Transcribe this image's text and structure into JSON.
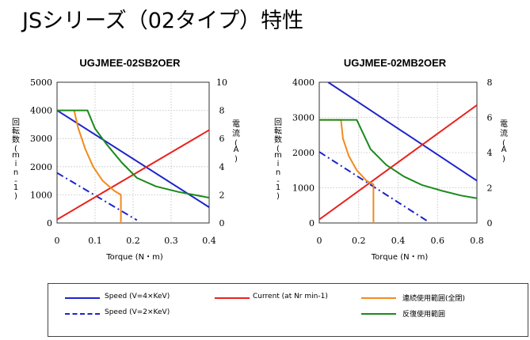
{
  "page": {
    "title": "JSシリーズ（02タイプ）特性"
  },
  "chart_data": [
    {
      "type": "line",
      "title": "UGJMEE-02SB2OER",
      "xlabel": "Torque (N・m)",
      "ylabel_left": "回転数 (min-1)",
      "ylabel_right": "電流 (A)",
      "xlim": [
        0,
        0.4
      ],
      "ylim_left": [
        0,
        5000
      ],
      "ylim_right": [
        0,
        10
      ],
      "x_ticks": [
        0,
        0.1,
        0.2,
        0.3,
        0.4
      ],
      "x_tick_labels": [
        "0",
        "0.1",
        "0.2",
        "0.3",
        "0.4"
      ],
      "y_left_ticks": [
        0,
        1000,
        2000,
        3000,
        4000,
        5000
      ],
      "y_left_tick_labels": [
        "0",
        "1000",
        "2000",
        "3000",
        "4000",
        "5000"
      ],
      "y_right_ticks": [
        0,
        2,
        4,
        6,
        8,
        10
      ],
      "y_right_tick_labels": [
        "0",
        "2",
        "4",
        "6",
        "8",
        "10"
      ],
      "grid": true,
      "series": [
        {
          "name": "Speed (V=4×KeV)",
          "axis": "left",
          "color": "#1f24c8",
          "style": "solid",
          "x": [
            0,
            0.4
          ],
          "y": [
            4000,
            560
          ]
        },
        {
          "name": "Speed (V=2×KeV)",
          "axis": "left",
          "color": "#1f24c8",
          "style": "dashdot",
          "x": [
            0,
            0.21
          ],
          "y": [
            1780,
            100
          ]
        },
        {
          "name": "Current (at Nr min-1)",
          "axis": "right",
          "color": "#e8231e",
          "style": "solid",
          "x": [
            0,
            0.4
          ],
          "y": [
            0.25,
            6.6
          ]
        },
        {
          "name": "連続使用範囲(全閉)",
          "axis": "left",
          "color": "#f28a1e",
          "style": "solid",
          "x": [
            0.045,
            0.055,
            0.075,
            0.095,
            0.12,
            0.15,
            0.168,
            0.168
          ],
          "y": [
            4000,
            3400,
            2600,
            2000,
            1500,
            1150,
            1000,
            0
          ]
        },
        {
          "name": "反復使用範囲",
          "axis": "left",
          "color": "#1a8a1a",
          "style": "solid",
          "x": [
            0,
            0.08,
            0.1,
            0.13,
            0.17,
            0.21,
            0.26,
            0.32,
            0.4
          ],
          "y": [
            4000,
            4000,
            3350,
            2800,
            2150,
            1600,
            1300,
            1100,
            900
          ]
        }
      ]
    },
    {
      "type": "line",
      "title": "UGJMEE-02MB2OER",
      "xlabel": "Torque (N・m)",
      "ylabel_left": "回転数 (min-1)",
      "ylabel_right": "電流 (A)",
      "xlim": [
        0,
        0.8
      ],
      "ylim_left": [
        0,
        4000
      ],
      "ylim_right": [
        0,
        8
      ],
      "x_ticks": [
        0,
        0.2,
        0.4,
        0.6,
        0.8
      ],
      "x_tick_labels": [
        "0",
        "0.2",
        "0.4",
        "0.6",
        "0.8"
      ],
      "y_left_ticks": [
        0,
        1000,
        2000,
        3000,
        4000
      ],
      "y_left_tick_labels": [
        "0",
        "1000",
        "2000",
        "3000",
        "4000"
      ],
      "y_right_ticks": [
        0,
        2,
        4,
        6,
        8
      ],
      "y_right_tick_labels": [
        "0",
        "2",
        "4",
        "6",
        "8"
      ],
      "grid": true,
      "series": [
        {
          "name": "Speed (V=4×KeV)",
          "axis": "left",
          "color": "#1f24c8",
          "style": "solid",
          "x": [
            0.045,
            0.8
          ],
          "y": [
            4000,
            1200
          ]
        },
        {
          "name": "Speed (V=2×KeV)",
          "axis": "left",
          "color": "#1f24c8",
          "style": "dashdot",
          "x": [
            0,
            0.55
          ],
          "y": [
            2020,
            50
          ]
        },
        {
          "name": "Current (at Nr min-1)",
          "axis": "right",
          "color": "#e8231e",
          "style": "solid",
          "x": [
            0,
            0.8
          ],
          "y": [
            0.2,
            6.7
          ]
        },
        {
          "name": "連続使用範囲(全閉)",
          "axis": "left",
          "color": "#f28a1e",
          "style": "solid",
          "x": [
            0,
            0.11,
            0.12,
            0.15,
            0.19,
            0.24,
            0.275,
            0.275
          ],
          "y": [
            2930,
            2930,
            2400,
            1900,
            1500,
            1200,
            1100,
            0
          ]
        },
        {
          "name": "反復使用範囲",
          "axis": "left",
          "color": "#1a8a1a",
          "style": "solid",
          "x": [
            0,
            0.19,
            0.26,
            0.34,
            0.43,
            0.52,
            0.62,
            0.72,
            0.8
          ],
          "y": [
            2930,
            2930,
            2100,
            1650,
            1320,
            1080,
            920,
            780,
            700
          ]
        }
      ]
    }
  ],
  "legend": {
    "items": [
      {
        "label": "Speed (V=4×KeV)",
        "color": "#1f24c8",
        "style": "solid"
      },
      {
        "label": "Current (at Nr min-1)",
        "color": "#e8231e",
        "style": "solid"
      },
      {
        "label": "連続使用範囲(全閉)",
        "color": "#f28a1e",
        "style": "solid"
      },
      {
        "label": "Speed (V=2×KeV)",
        "color": "#1f24c8",
        "style": "dashdot"
      },
      {
        "label": "反復使用範囲",
        "color": "#1a8a1a",
        "style": "solid"
      }
    ]
  }
}
